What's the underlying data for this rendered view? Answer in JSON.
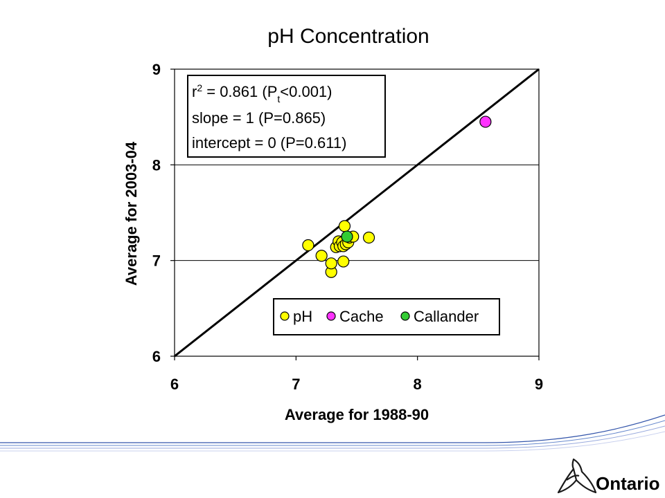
{
  "chart_data": {
    "type": "scatter",
    "title": "pH Concentration",
    "xlabel": "Average for 1988-90",
    "ylabel": "Average for 2003-04",
    "xlim": [
      6,
      9
    ],
    "ylim": [
      6,
      9
    ],
    "xticks": [
      "6",
      "7",
      "8",
      "9"
    ],
    "yticks": [
      "6",
      "7",
      "8",
      "9"
    ],
    "grid": "horizontal",
    "reference_line": {
      "x": [
        6,
        9
      ],
      "y": [
        6,
        9
      ]
    },
    "stats": {
      "r2_prefix": "r",
      "r2_sup": "2",
      "r2_value": " = 0.861  (P",
      "r2_sub": "t",
      "r2_tail": "<0.001)",
      "slope": "slope = 1 (P=0.865)",
      "intercept": "intercept = 0 (P=0.611)"
    },
    "legend_position": "bottom-right",
    "series": [
      {
        "name": "pH",
        "color": "#ffff00",
        "points": [
          [
            7.1,
            7.16
          ],
          [
            7.21,
            7.05
          ],
          [
            7.29,
            6.88
          ],
          [
            7.29,
            6.97
          ],
          [
            7.33,
            7.14
          ],
          [
            7.35,
            7.2
          ],
          [
            7.36,
            7.15
          ],
          [
            7.38,
            7.19
          ],
          [
            7.39,
            6.99
          ],
          [
            7.39,
            7.15
          ],
          [
            7.4,
            7.36
          ],
          [
            7.41,
            7.17
          ],
          [
            7.43,
            7.19
          ],
          [
            7.44,
            7.24
          ],
          [
            7.47,
            7.25
          ],
          [
            7.6,
            7.24
          ]
        ]
      },
      {
        "name": "Cache",
        "color": "#ff33ff",
        "points": [
          [
            8.56,
            8.45
          ]
        ]
      },
      {
        "name": "Callander",
        "color": "#33cc33",
        "points": [
          [
            7.42,
            7.25
          ]
        ]
      }
    ]
  },
  "branding": {
    "name": "Ontario",
    "accent_line_color": "#3355aa"
  }
}
